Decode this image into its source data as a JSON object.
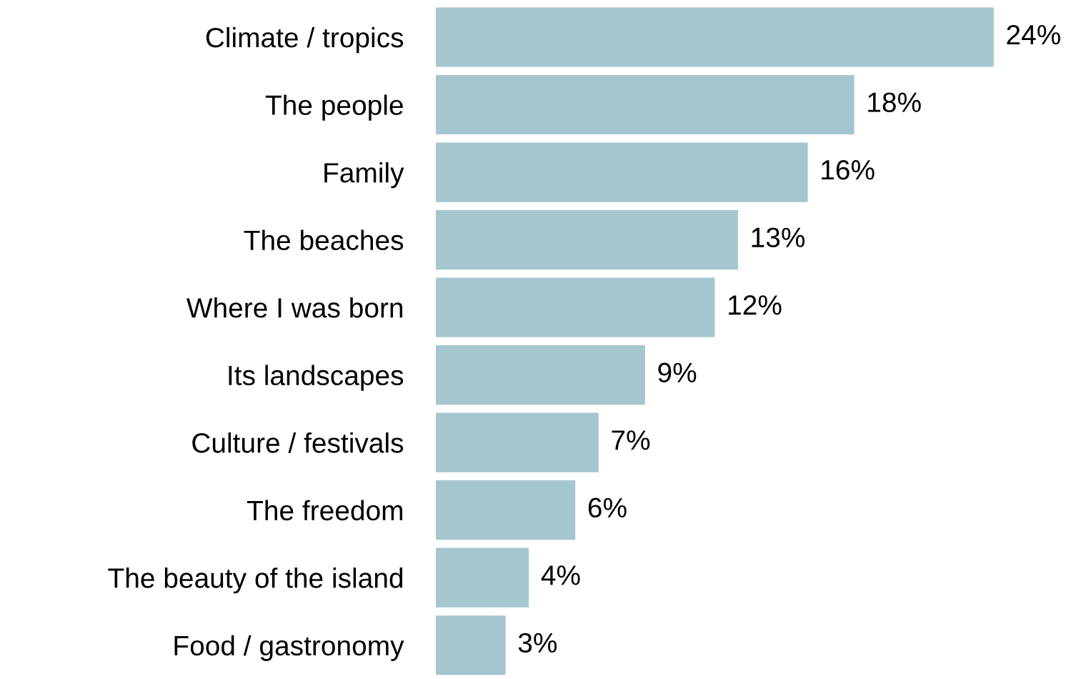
{
  "chart_data": {
    "type": "bar",
    "orientation": "horizontal",
    "grid": false,
    "legend": false,
    "categories": [
      "Climate / tropics",
      "The people",
      "Family",
      "The beaches",
      "Where I was born",
      "Its landscapes",
      "Culture / festivals",
      "The freedom",
      "The beauty of the island",
      "Food / gastronomy"
    ],
    "values": [
      24,
      18,
      16,
      13,
      12,
      9,
      7,
      6,
      4,
      3
    ],
    "value_labels": [
      "24%",
      "18%",
      "16%",
      "13%",
      "12%",
      "9%",
      "7%",
      "6%",
      "4%",
      "3%"
    ],
    "color": "#a6c6cf",
    "tick_labels": "y"
  }
}
